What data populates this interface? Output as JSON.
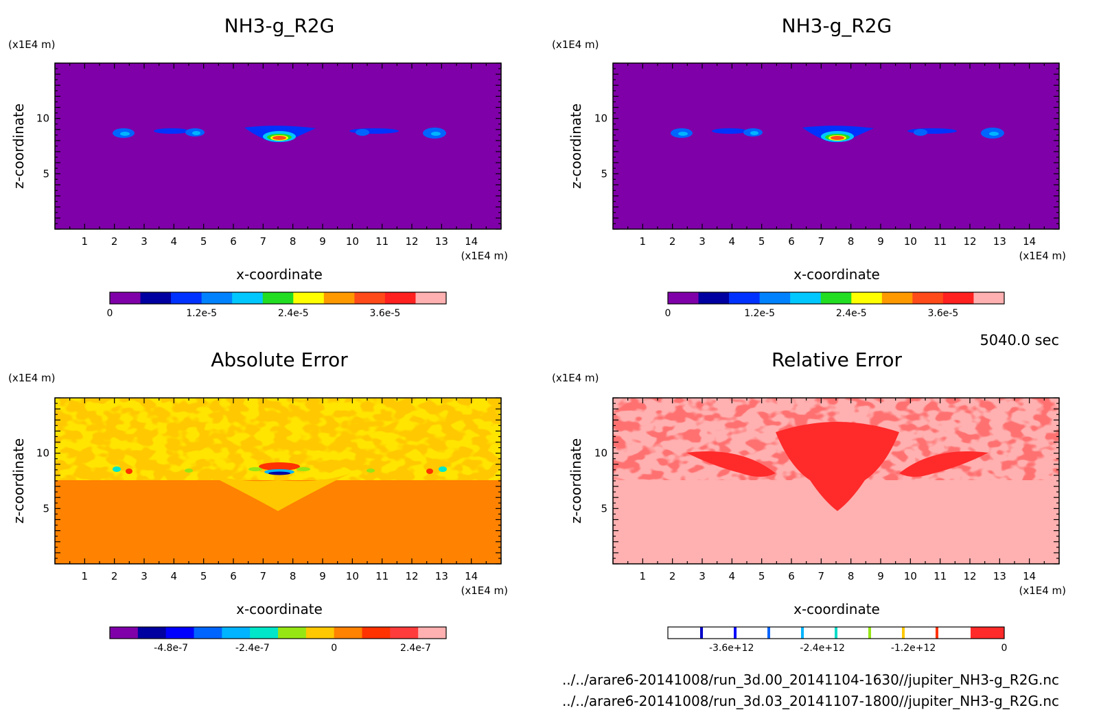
{
  "chart_data": [
    {
      "type": "heatmap",
      "title": "NH3-g_R2G",
      "xlabel": "x-coordinate",
      "ylabel": "z-coordinate",
      "x_unit": "(x1E4 m)",
      "y_unit": "(x1E4 m)",
      "xticks": [
        1,
        2,
        3,
        4,
        5,
        6,
        7,
        8,
        9,
        10,
        11,
        12,
        13,
        14
      ],
      "yticks": [
        5,
        10
      ],
      "xlim": [
        0,
        15
      ],
      "ylim": [
        0,
        15
      ],
      "colorbar": {
        "colors": [
          "#7f00a8",
          "#0000a0",
          "#0032ff",
          "#0082ff",
          "#00c8ff",
          "#22dd22",
          "#ffff00",
          "#ff9900",
          "#ff4a1a",
          "#ff2020",
          "#ffb0b0"
        ],
        "tick_labels": [
          "0",
          "1.2e-5",
          "2.4e-5",
          "3.6e-5"
        ],
        "tick_values": [
          0,
          1.2e-05,
          2.4e-05,
          3.6e-05
        ],
        "range": [
          0,
          4.4e-05
        ]
      }
    },
    {
      "type": "heatmap",
      "title": "NH3-g_R2G",
      "xlabel": "x-coordinate",
      "ylabel": "z-coordinate",
      "x_unit": "(x1E4 m)",
      "y_unit": "(x1E4 m)",
      "xticks": [
        1,
        2,
        3,
        4,
        5,
        6,
        7,
        8,
        9,
        10,
        11,
        12,
        13,
        14
      ],
      "yticks": [
        5,
        10
      ],
      "xlim": [
        0,
        15
      ],
      "ylim": [
        0,
        15
      ],
      "colorbar": {
        "colors": [
          "#7f00a8",
          "#0000a0",
          "#0032ff",
          "#0082ff",
          "#00c8ff",
          "#22dd22",
          "#ffff00",
          "#ff9900",
          "#ff4a1a",
          "#ff2020",
          "#ffb0b0"
        ],
        "tick_labels": [
          "0",
          "1.2e-5",
          "2.4e-5",
          "3.6e-5"
        ],
        "tick_values": [
          0,
          1.2e-05,
          2.4e-05,
          3.6e-05
        ],
        "range": [
          0,
          4.4e-05
        ]
      }
    },
    {
      "type": "heatmap",
      "title": "Absolute Error",
      "xlabel": "x-coordinate",
      "ylabel": "z-coordinate",
      "x_unit": "(x1E4 m)",
      "y_unit": "(x1E4 m)",
      "xticks": [
        1,
        2,
        3,
        4,
        5,
        6,
        7,
        8,
        9,
        10,
        11,
        12,
        13,
        14
      ],
      "yticks": [
        5,
        10
      ],
      "xlim": [
        0,
        15
      ],
      "ylim": [
        0,
        15
      ],
      "colorbar": {
        "colors": [
          "#7f00a8",
          "#0000a0",
          "#0000ff",
          "#0064ff",
          "#00b4ff",
          "#00e6c8",
          "#96e614",
          "#ffc800",
          "#ff8200",
          "#ff3200",
          "#ff3c3c",
          "#ffb0b0"
        ],
        "tick_labels": [
          "-4.8e-7",
          "-2.4e-7",
          "0",
          "2.4e-7"
        ],
        "tick_values": [
          -4.8e-07,
          -2.4e-07,
          0,
          2.4e-07
        ],
        "range": [
          -6.6e-07,
          3.3e-07
        ]
      }
    },
    {
      "type": "heatmap",
      "title": "Relative Error",
      "xlabel": "x-coordinate",
      "ylabel": "z-coordinate",
      "x_unit": "(x1E4 m)",
      "y_unit": "(x1E4 m)",
      "xticks": [
        1,
        2,
        3,
        4,
        5,
        6,
        7,
        8,
        9,
        10,
        11,
        12,
        13,
        14
      ],
      "yticks": [
        5,
        10
      ],
      "xlim": [
        0,
        15
      ],
      "ylim": [
        0,
        15
      ],
      "colorbar": {
        "colors": [
          "#ffffff",
          "#ffffff",
          "#ffffff",
          "#ffffff",
          "#ffffff",
          "#ffffff",
          "#ffffff",
          "#ffffff",
          "#ffffff",
          "#ff2a2a"
        ],
        "divider_colors": [
          "#0000c8",
          "#0000ff",
          "#0064ff",
          "#00b4ff",
          "#00dcc8",
          "#96e614",
          "#ffc800",
          "#ff3200"
        ],
        "tick_labels": [
          "-3.6e+12",
          "-2.4e+12",
          "-1.2e+12",
          "0"
        ],
        "tick_values": [
          -3600000000000.0,
          -2400000000000.0,
          -1200000000000.0,
          0
        ],
        "range": [
          -4440000000000.0,
          0
        ]
      }
    }
  ],
  "time_label": "5040.0 sec",
  "file_paths": [
    "../../arare6-20141008/run_3d.00_20141104-1630//jupiter_NH3-g_R2G.nc",
    "../../arare6-20141008/run_3d.03_20141107-1800//jupiter_NH3-g_R2G.nc"
  ]
}
